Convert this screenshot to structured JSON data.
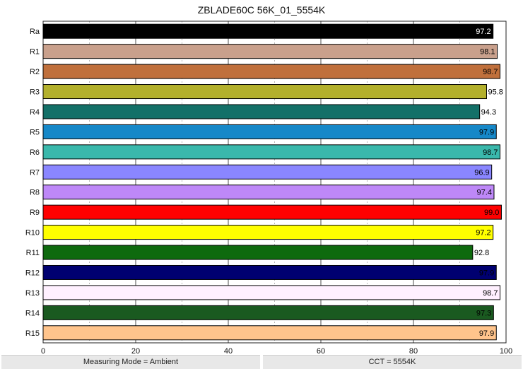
{
  "chart_data": {
    "type": "bar",
    "orientation": "horizontal",
    "title": "ZBLADE60C 56K_01_5554K",
    "categories": [
      "Ra",
      "R1",
      "R2",
      "R3",
      "R4",
      "R5",
      "R6",
      "R7",
      "R8",
      "R9",
      "R10",
      "R11",
      "R12",
      "R13",
      "R14",
      "R15"
    ],
    "values": [
      97.2,
      98.1,
      98.7,
      95.8,
      94.3,
      97.9,
      98.7,
      96.9,
      97.4,
      99.0,
      97.2,
      92.8,
      97.9,
      98.7,
      97.3,
      97.9
    ],
    "value_labels": [
      "97.2",
      "98.1",
      "98.7",
      "95.8",
      "94.3",
      "97.9",
      "98.7",
      "96.9",
      "97.4",
      "99.0",
      "97.2",
      "92.8",
      "97.9",
      "98.7",
      "97.3",
      "97.9"
    ],
    "colors": [
      "#000000",
      "#c9a08c",
      "#c0703c",
      "#b3b02c",
      "#137068",
      "#1688c8",
      "#3ab8ac",
      "#8a86ff",
      "#be88f8",
      "#ff0000",
      "#ffff00",
      "#0e6a0e",
      "#000070",
      "#fff0ff",
      "#1a5a20",
      "#ffc48c"
    ],
    "label_colors": [
      "#ffffff",
      "#000000",
      "#000000",
      "#000000",
      "#000000",
      "#000000",
      "#000000",
      "#000000",
      "#000000",
      "#000000",
      "#000000",
      "#000000",
      "#000000",
      "#000000",
      "#000000",
      "#000000"
    ],
    "label_inside": [
      true,
      true,
      true,
      false,
      false,
      true,
      true,
      true,
      true,
      true,
      true,
      false,
      true,
      true,
      true,
      true
    ],
    "xlim": [
      0,
      100
    ],
    "xticks": [
      "0",
      "20",
      "40",
      "60",
      "80",
      "100"
    ],
    "grid": true
  },
  "footer": {
    "left": "Measuring Mode = Ambient",
    "right": "CCT = 5554K"
  }
}
